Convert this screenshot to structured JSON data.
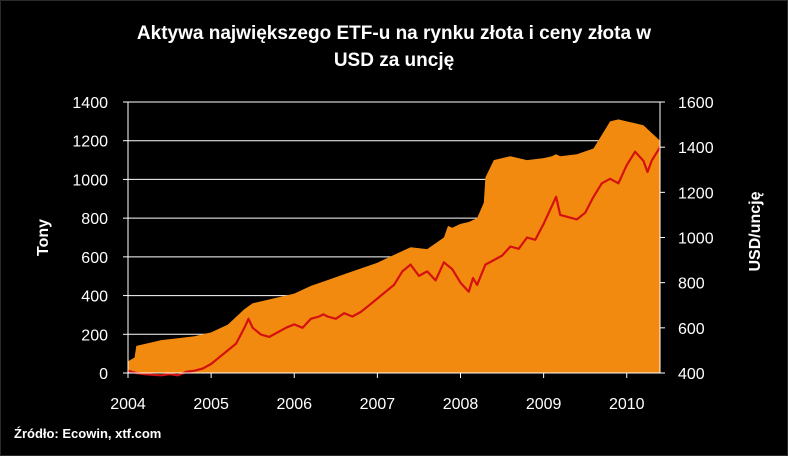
{
  "title_line1": "Aktywa największego ETF-u na rynku złota i ceny złota w",
  "title_line2": "USD  za uncję",
  "source": "Źródło: Ecowin, xtf.com",
  "chart_data": {
    "type": "area",
    "ylabel_left": "Tony",
    "ylabel_right": "USD/uncję",
    "x_ticks": [
      "2004",
      "2005",
      "2006",
      "2007",
      "2008",
      "2009",
      "2010"
    ],
    "y_left_ticks": [
      "0",
      "200",
      "400",
      "600",
      "800",
      "1000",
      "1200",
      "1400"
    ],
    "y_right_ticks": [
      "400",
      "600",
      "800",
      "1000",
      "1200",
      "1400",
      "1600"
    ],
    "xlim": [
      2004.0,
      2010.4
    ],
    "ylim_left": [
      0,
      1400
    ],
    "ylim_right": [
      400,
      1600
    ],
    "grid": true,
    "area_color": "#F28A10",
    "line_color": "#D41010",
    "series": [
      {
        "axis": "left",
        "x": [
          2004.0,
          2004.08,
          2004.1,
          2004.2,
          2004.4,
          2004.6,
          2004.8,
          2004.9,
          2005.0,
          2005.2,
          2005.4,
          2005.5,
          2005.6,
          2005.8,
          2006.0,
          2006.2,
          2006.4,
          2006.6,
          2006.8,
          2007.0,
          2007.2,
          2007.4,
          2007.6,
          2007.8,
          2007.85,
          2007.9,
          2008.0,
          2008.1,
          2008.2,
          2008.28,
          2008.3,
          2008.4,
          2008.6,
          2008.8,
          2009.0,
          2009.1,
          2009.15,
          2009.2,
          2009.4,
          2009.6,
          2009.8,
          2009.9,
          2010.0,
          2010.1,
          2010.2,
          2010.3,
          2010.35,
          2010.4
        ],
        "values": [
          60,
          80,
          140,
          150,
          170,
          180,
          190,
          200,
          210,
          250,
          330,
          360,
          370,
          390,
          410,
          450,
          480,
          510,
          540,
          570,
          610,
          650,
          640,
          700,
          760,
          750,
          770,
          780,
          800,
          880,
          1010,
          1100,
          1120,
          1100,
          1110,
          1120,
          1130,
          1120,
          1130,
          1160,
          1300,
          1310,
          1300,
          1290,
          1280,
          1240,
          1220,
          1200
        ]
      },
      {
        "axis": "right",
        "x": [
          2004.0,
          2004.1,
          2004.2,
          2004.3,
          2004.4,
          2004.5,
          2004.6,
          2004.7,
          2004.8,
          2004.9,
          2005.0,
          2005.1,
          2005.2,
          2005.3,
          2005.4,
          2005.45,
          2005.5,
          2005.6,
          2005.7,
          2005.8,
          2005.9,
          2006.0,
          2006.1,
          2006.2,
          2006.3,
          2006.35,
          2006.4,
          2006.5,
          2006.6,
          2006.7,
          2006.8,
          2006.9,
          2007.0,
          2007.1,
          2007.2,
          2007.3,
          2007.4,
          2007.5,
          2007.6,
          2007.7,
          2007.8,
          2007.9,
          2008.0,
          2008.1,
          2008.15,
          2008.2,
          2008.3,
          2008.4,
          2008.5,
          2008.6,
          2008.7,
          2008.8,
          2008.9,
          2009.0,
          2009.1,
          2009.15,
          2009.2,
          2009.3,
          2009.4,
          2009.5,
          2009.6,
          2009.7,
          2009.8,
          2009.9,
          2010.0,
          2010.1,
          2010.15,
          2010.2,
          2010.25,
          2010.3,
          2010.4
        ],
        "values": [
          410,
          400,
          395,
          392,
          390,
          395,
          390,
          405,
          410,
          420,
          440,
          470,
          500,
          530,
          600,
          640,
          600,
          570,
          560,
          580,
          600,
          615,
          600,
          640,
          650,
          660,
          650,
          640,
          665,
          650,
          670,
          700,
          730,
          760,
          790,
          850,
          880,
          830,
          850,
          810,
          890,
          860,
          800,
          760,
          820,
          790,
          880,
          900,
          920,
          960,
          950,
          1000,
          990,
          1060,
          1140,
          1180,
          1100,
          1090,
          1080,
          1110,
          1180,
          1240,
          1260,
          1240,
          1320,
          1380,
          1360,
          1340,
          1290,
          1340,
          1400
        ]
      }
    ]
  }
}
